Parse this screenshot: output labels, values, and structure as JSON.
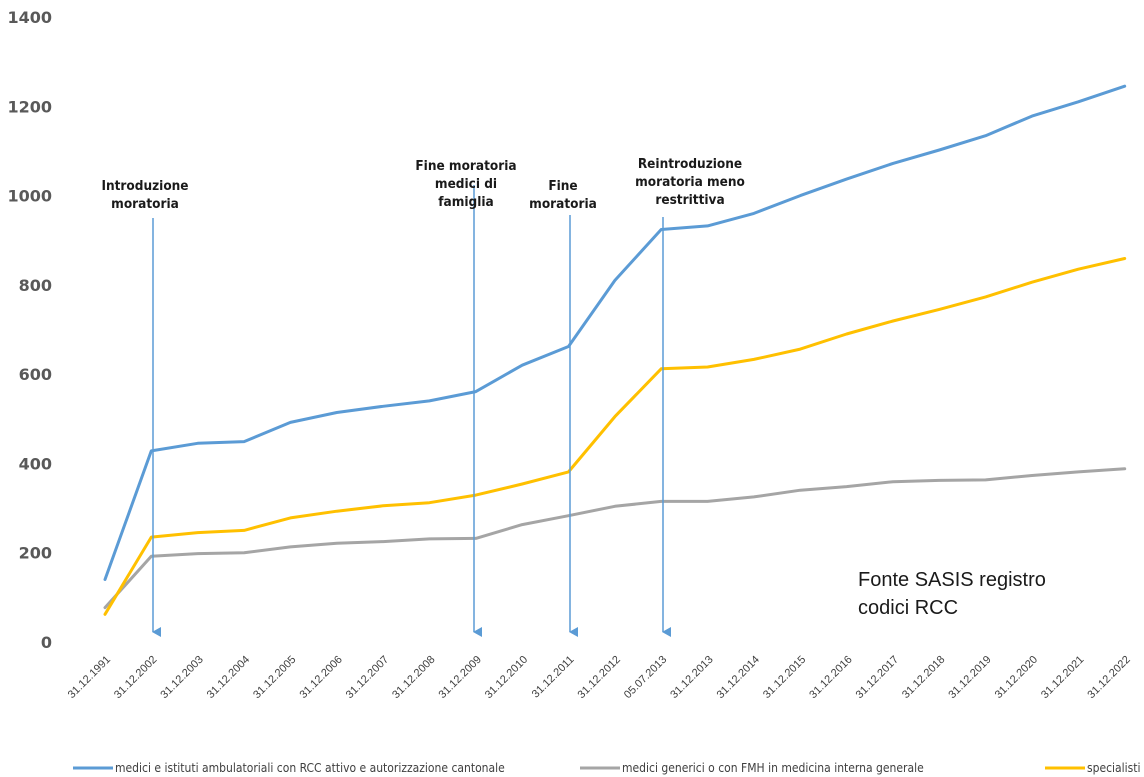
{
  "chart_data": {
    "type": "line",
    "title": "",
    "xlabel": "",
    "ylabel": "",
    "ylim": [
      0,
      1400
    ],
    "yticks": [
      0,
      200,
      400,
      600,
      800,
      1000,
      1200,
      1400
    ],
    "grid": false,
    "legend_position": "bottom",
    "categories": [
      "31.12.1991",
      "31.12.2002",
      "31.12.2003",
      "31.12.2004",
      "31.12.2005",
      "31.12.2006",
      "31.12.2007",
      "31.12.2008",
      "31.12.2009",
      "31.12.2010",
      "31.12.2011",
      "31.12.2012",
      "05.07.2013",
      "31.12.2013",
      "31.12.2014",
      "31.12.2015",
      "31.12.2016",
      "31.12.2017",
      "31.12.2018",
      "31.12.2019",
      "31.12.2020",
      "31.12.2021",
      "31.12.2022"
    ],
    "series": [
      {
        "name": "medici e istituti ambulatoriali con RCC attivo e autorizzazione cantonale",
        "color": "#5b9bd5",
        "values": [
          140,
          428,
          445,
          449,
          492,
          514,
          528,
          540,
          561,
          620,
          662,
          810,
          924,
          932,
          960,
          1000,
          1037,
          1072,
          1102,
          1134,
          1178,
          1210,
          1245
        ]
      },
      {
        "name": "medici generici o con FMH in medicina interna generale",
        "color": "#a5a5a5",
        "values": [
          77,
          192,
          198,
          200,
          213,
          221,
          225,
          231,
          232,
          263,
          283,
          304,
          315,
          315,
          325,
          340,
          348,
          359,
          362,
          363,
          373,
          381,
          388
        ]
      },
      {
        "name": "specialisti",
        "color": "#ffc000",
        "values": [
          62,
          235,
          245,
          250,
          278,
          293,
          305,
          312,
          329,
          354,
          381,
          505,
          612,
          616,
          633,
          656,
          690,
          719,
          745,
          773,
          806,
          835,
          859
        ]
      }
    ],
    "annotations": [
      {
        "category": "31.12.2002",
        "lines": [
          "Introduzione",
          "moratoria"
        ]
      },
      {
        "category": "31.12.2009",
        "lines": [
          "Fine moratoria",
          "medici di",
          "famiglia"
        ]
      },
      {
        "category": "31.12.2011",
        "lines": [
          "Fine",
          "moratoria"
        ]
      },
      {
        "category": "05.07.2013",
        "lines": [
          "Reintroduzione",
          "moratoria meno",
          "restrittiva"
        ]
      }
    ],
    "source_note": [
      "Fonte SASIS registro",
      "codici RCC"
    ]
  }
}
